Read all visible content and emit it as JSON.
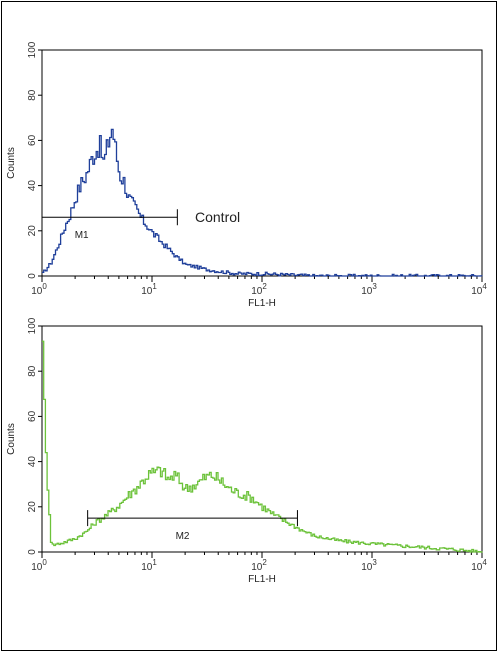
{
  "chart_data": [
    {
      "type": "line",
      "title": "",
      "xlabel": "FL1-H",
      "ylabel": "Counts",
      "xscale": "log",
      "xlim": [
        1,
        10000
      ],
      "ylim": [
        0,
        100
      ],
      "yticks": [
        0,
        20,
        40,
        60,
        80,
        100
      ],
      "xticks": [
        {
          "value": 1,
          "base": "10",
          "exp": "0"
        },
        {
          "value": 10,
          "base": "10",
          "exp": "1"
        },
        {
          "value": 100,
          "base": "10",
          "exp": "2"
        },
        {
          "value": 1000,
          "base": "10",
          "exp": "3"
        },
        {
          "value": 10000,
          "base": "10",
          "exp": "4"
        }
      ],
      "grid": false,
      "series": [
        {
          "name": "Control",
          "color": "#1f3f9a",
          "x": [
            1.0,
            1.2,
            1.4,
            1.6,
            1.8,
            2.0,
            2.2,
            2.5,
            2.8,
            3.0,
            3.3,
            3.6,
            4.0,
            4.3,
            4.6,
            5.0,
            5.5,
            6.0,
            7.0,
            8.0,
            9.0,
            10.0,
            12.0,
            14.0,
            16.0,
            18.0,
            20.0,
            25.0,
            30.0,
            40.0,
            60.0,
            100.0,
            300.0,
            1000.0,
            10000.0
          ],
          "y": [
            1,
            6,
            14,
            22,
            28,
            35,
            40,
            45,
            52,
            55,
            58,
            50,
            60,
            66,
            56,
            45,
            42,
            35,
            30,
            25,
            22,
            19,
            15,
            12,
            9,
            7,
            5,
            4,
            3,
            2,
            1,
            1,
            0,
            0,
            0
          ]
        }
      ],
      "marker": {
        "label": "M1",
        "x_start": 1.0,
        "x_end": 17.0,
        "y": 26
      },
      "annotation": {
        "text": "Control"
      }
    },
    {
      "type": "line",
      "title": "",
      "xlabel": "FL1-H",
      "ylabel": "Counts",
      "xscale": "log",
      "xlim": [
        1,
        10000
      ],
      "ylim": [
        0,
        100
      ],
      "yticks": [
        0,
        20,
        40,
        60,
        80,
        100
      ],
      "xticks": [
        {
          "value": 1,
          "base": "10",
          "exp": "0"
        },
        {
          "value": 10,
          "base": "10",
          "exp": "1"
        },
        {
          "value": 100,
          "base": "10",
          "exp": "2"
        },
        {
          "value": 1000,
          "base": "10",
          "exp": "3"
        },
        {
          "value": 10000,
          "base": "10",
          "exp": "4"
        }
      ],
      "grid": false,
      "series": [
        {
          "name": "",
          "color": "#6cc23a",
          "x": [
            1.0,
            1.05,
            1.2,
            1.5,
            2.0,
            2.5,
            3.0,
            4.0,
            5.0,
            6.0,
            7.0,
            8.0,
            9.0,
            10.0,
            12.0,
            14.0,
            16.0,
            20.0,
            25.0,
            30.0,
            35.0,
            40.0,
            50.0,
            60.0,
            70.0,
            80.0,
            100.0,
            130.0,
            170.0,
            220.0,
            300.0,
            500.0,
            800.0,
            1500.0,
            3000.0,
            6000.0,
            10000.0
          ],
          "y": [
            100,
            50,
            3,
            4,
            6,
            9,
            13,
            17,
            21,
            25,
            28,
            31,
            34,
            35,
            36,
            32,
            34,
            28,
            30,
            33,
            34,
            32,
            28,
            26,
            25,
            24,
            20,
            16,
            13,
            10,
            7,
            5,
            4,
            3,
            2,
            1,
            0
          ]
        }
      ],
      "marker": {
        "label": "M2",
        "x_start": 2.6,
        "x_end": 210.0,
        "y": 15
      }
    }
  ]
}
